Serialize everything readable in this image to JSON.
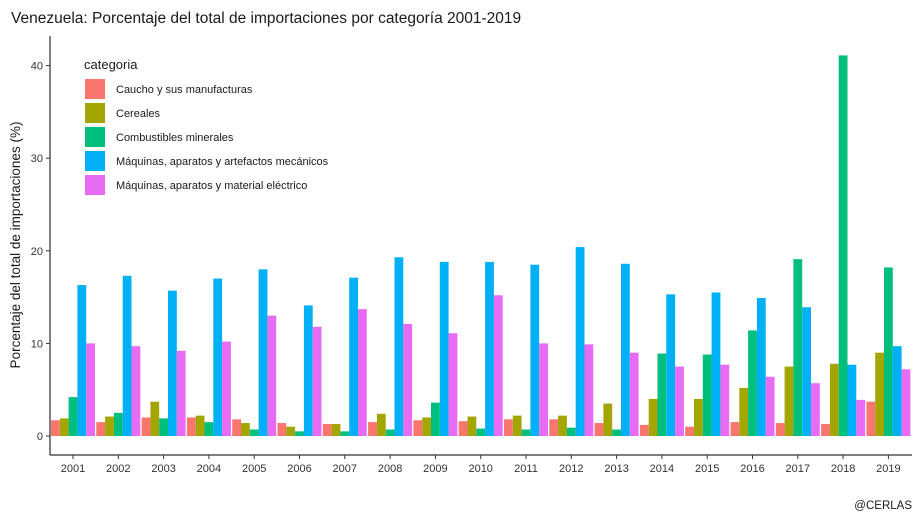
{
  "chart_data": {
    "type": "bar",
    "title": "Venezuela: Porcentaje del total de importaciones por categoría 2001-2019",
    "xlabel": "",
    "ylabel": "Porcentaje del total de importaciones (%)",
    "ylim": [
      0,
      42
    ],
    "yticks": [
      0,
      10,
      20,
      30,
      40
    ],
    "grid": false,
    "legend_title": "categoria",
    "legend_position": "top-left",
    "caption": "@CERLAS",
    "categories": [
      "2001",
      "2002",
      "2003",
      "2004",
      "2005",
      "2006",
      "2007",
      "2008",
      "2009",
      "2010",
      "2011",
      "2012",
      "2013",
      "2014",
      "2015",
      "2016",
      "2017",
      "2018",
      "2019"
    ],
    "series": [
      {
        "name": "Caucho y sus manufacturas",
        "color": "#F8766D",
        "values": [
          1.7,
          1.5,
          2.0,
          2.0,
          1.8,
          1.4,
          1.3,
          1.5,
          1.7,
          1.6,
          1.8,
          1.8,
          1.4,
          1.2,
          1.0,
          1.5,
          1.4,
          1.3,
          3.7
        ]
      },
      {
        "name": "Cereales",
        "color": "#A3A500",
        "values": [
          1.9,
          2.1,
          3.7,
          2.2,
          1.4,
          1.0,
          1.3,
          2.4,
          2.0,
          2.1,
          2.2,
          2.2,
          3.5,
          4.0,
          4.0,
          5.2,
          7.5,
          7.8,
          9.0
        ]
      },
      {
        "name": "Combustibles minerales",
        "color": "#00BF7D",
        "values": [
          4.2,
          2.5,
          1.9,
          1.5,
          0.7,
          0.5,
          0.5,
          0.7,
          3.6,
          0.8,
          0.7,
          0.9,
          0.7,
          8.9,
          8.8,
          11.4,
          19.1,
          41.1,
          18.2
        ]
      },
      {
        "name": "Máquinas, aparatos y artefactos mecánicos",
        "color": "#00B0F6",
        "values": [
          16.3,
          17.3,
          15.7,
          17.0,
          18.0,
          14.1,
          17.1,
          19.3,
          18.8,
          18.8,
          18.5,
          20.4,
          18.6,
          15.3,
          15.5,
          14.9,
          13.9,
          7.7,
          9.7
        ]
      },
      {
        "name": "Máquinas, aparatos y material eléctrico",
        "color": "#E76BF3",
        "values": [
          10.0,
          9.7,
          9.2,
          10.2,
          13.0,
          11.8,
          13.7,
          12.1,
          11.1,
          15.2,
          10.0,
          9.9,
          9.0,
          7.5,
          7.7,
          6.4,
          5.7,
          3.9,
          7.2
        ]
      }
    ]
  }
}
